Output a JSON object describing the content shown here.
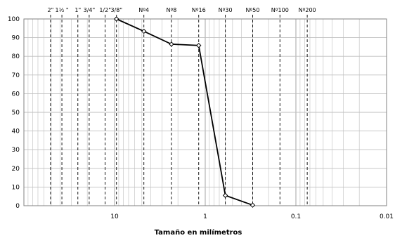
{
  "chart_data": {
    "type": "line",
    "title": "",
    "xlabel": "Tamaño en milímetros",
    "ylabel": "",
    "x_scale": "log",
    "x_reversed": true,
    "xlim": [
      100,
      0.01
    ],
    "ylim": [
      0,
      100
    ],
    "grid": true,
    "y_ticks": [
      {
        "value": 0,
        "label": "0"
      },
      {
        "value": 10,
        "label": "10"
      },
      {
        "value": 20,
        "label": "20"
      },
      {
        "value": 30,
        "label": "30"
      },
      {
        "value": 40,
        "label": "40"
      },
      {
        "value": 50,
        "label": "50"
      },
      {
        "value": 60,
        "label": "60"
      },
      {
        "value": 70,
        "label": "70"
      },
      {
        "value": 80,
        "label": "80"
      },
      {
        "value": 90,
        "label": "90"
      },
      {
        "value": 100,
        "label": "100"
      }
    ],
    "x_ticks": [
      {
        "value": 10,
        "label": "10"
      },
      {
        "value": 1,
        "label": "1"
      },
      {
        "value": 0.1,
        "label": "0.1"
      },
      {
        "value": 0.01,
        "label": "0.01"
      }
    ],
    "sieves": [
      {
        "label": "2\"",
        "size": 50.8
      },
      {
        "label": "1½ \"",
        "size": 38.1
      },
      {
        "label": "1\"",
        "size": 25.4
      },
      {
        "label": "3/4\"",
        "size": 19.05
      },
      {
        "label": "1/2\"",
        "size": 12.7
      },
      {
        "label": "3/8\"",
        "size": 9.525
      },
      {
        "label": "Nº4",
        "size": 4.75
      },
      {
        "label": "Nº8",
        "size": 2.36
      },
      {
        "label": "Nº16",
        "size": 1.18
      },
      {
        "label": "Nº30",
        "size": 0.6
      },
      {
        "label": "Nº50",
        "size": 0.3
      },
      {
        "label": "Nº100",
        "size": 0.15
      },
      {
        "label": "Nº200",
        "size": 0.075
      }
    ],
    "series": [
      {
        "x": [
          9.525,
          4.75,
          2.36,
          1.18,
          0.6,
          0.3
        ],
        "y": [
          100,
          93.4,
          86.5,
          85.8,
          5.5,
          0.3
        ]
      }
    ],
    "colors": {
      "line": "#000000",
      "grid": "#bfbfbf",
      "axis": "#808080",
      "sieve_line": "#000000"
    }
  }
}
